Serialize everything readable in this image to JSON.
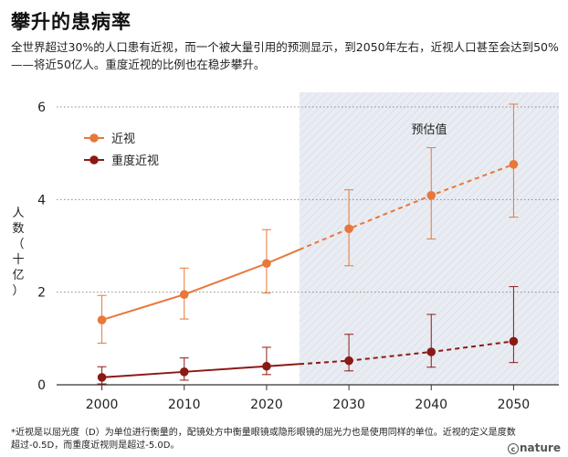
{
  "title": "攀升的患病率",
  "subtitle": "全世界超过30%的人口患有近视，而一个被大量引用的预测显示，到2050年左右，近视人口甚至会达到50%——将近50亿人。重度近视的比例也在稳步攀升。",
  "footnote": "*近视是以屈光度（D）为单位进行衡量的，配镜处方中衡量眼镜或隐形眼镜的屈光力也是使用同样的单位。近视的定义是度数超过-0.5D，而重度近视则是超过-5.0D。",
  "logo": "nature",
  "colors": {
    "myopia": "#e8773a",
    "high_myopia": "#8b1a14",
    "forecast_bg": "#e9ecf2",
    "axis": "#333333"
  },
  "chart_data": {
    "type": "line",
    "ylabel": "人数（十亿）",
    "xlabel": "",
    "ylim": [
      0,
      6
    ],
    "yticks": [
      0,
      2,
      4,
      6
    ],
    "x": [
      2000,
      2010,
      2020,
      2030,
      2040,
      2050
    ],
    "xlim": [
      1994.5,
      2055.5
    ],
    "grid": "dotted horizontal",
    "legend": "top-left",
    "forecast_region": {
      "start": 2024,
      "label": "预估值"
    },
    "series": [
      {
        "name": "近视",
        "color": "#e8773a",
        "values": [
          1.4,
          1.95,
          2.62,
          3.37,
          4.09,
          4.76
        ],
        "error_low": [
          0.9,
          1.42,
          1.98,
          2.57,
          3.15,
          3.62
        ],
        "error_high": [
          1.93,
          2.52,
          3.35,
          4.21,
          5.12,
          6.06
        ]
      },
      {
        "name": "重度近视",
        "color": "#8b1a14",
        "values": [
          0.16,
          0.28,
          0.4,
          0.52,
          0.71,
          0.94
        ],
        "error_low": [
          0.02,
          0.1,
          0.22,
          0.3,
          0.38,
          0.48
        ],
        "error_high": [
          0.39,
          0.58,
          0.81,
          1.09,
          1.52,
          2.12
        ]
      }
    ]
  }
}
